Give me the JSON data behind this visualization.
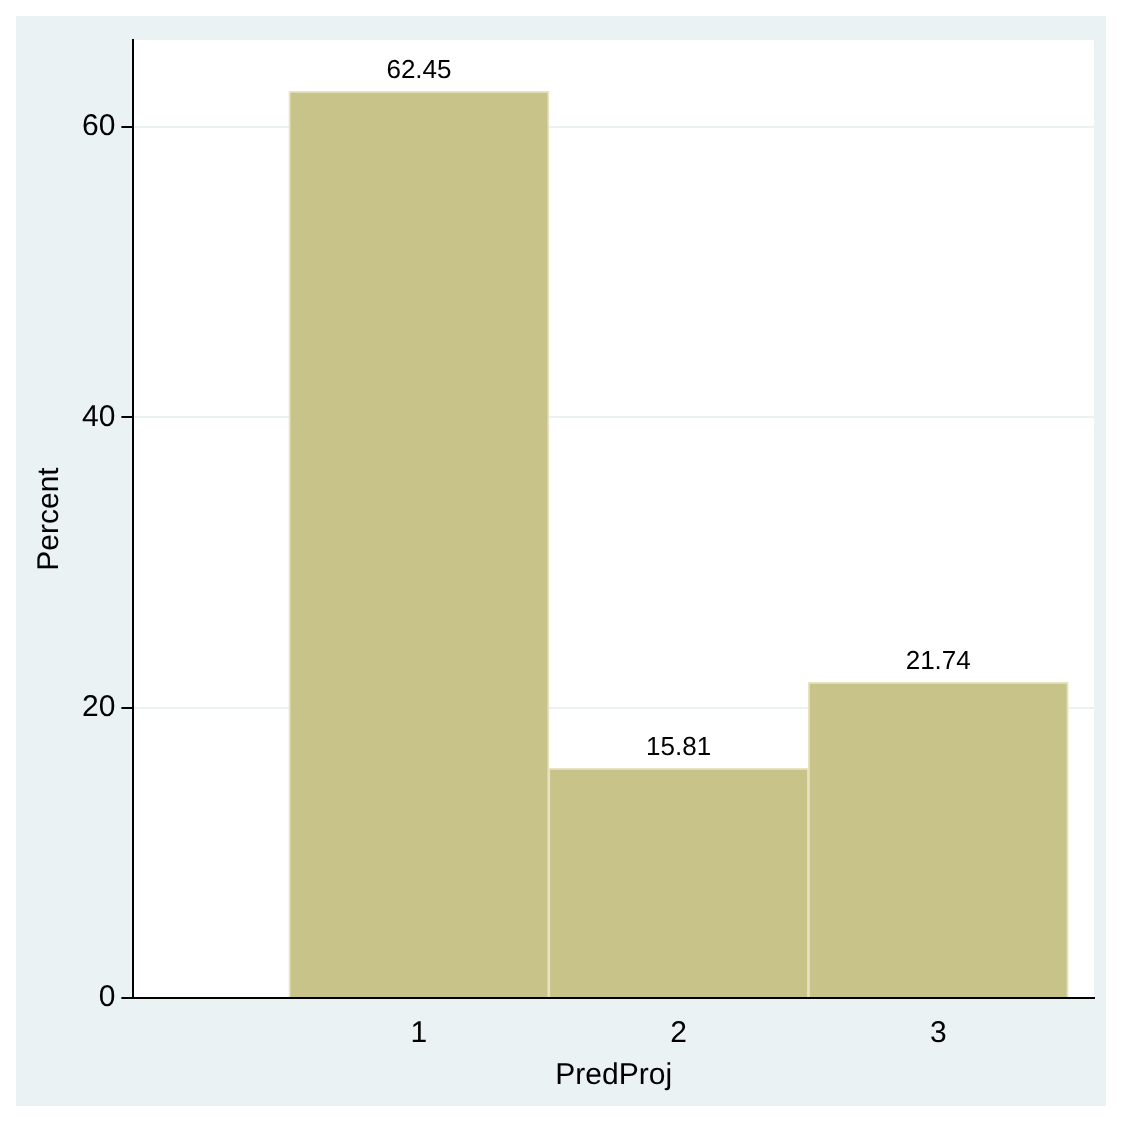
{
  "chart_data": {
    "type": "histogram",
    "xlabel": "PredProj",
    "ylabel": "Percent",
    "bins": [
      0.5,
      1.5,
      2.5,
      3.5
    ],
    "values": [
      62.45,
      15.81,
      21.74
    ],
    "color": "#c8c388",
    "xlim": [
      -0.1,
      3.6
    ],
    "xticks": [
      1,
      2,
      3
    ],
    "ylim": [
      0,
      66
    ],
    "yticks": [
      0,
      20,
      40,
      60
    ],
    "grid": "y",
    "legend": false,
    "data_labels": true
  }
}
